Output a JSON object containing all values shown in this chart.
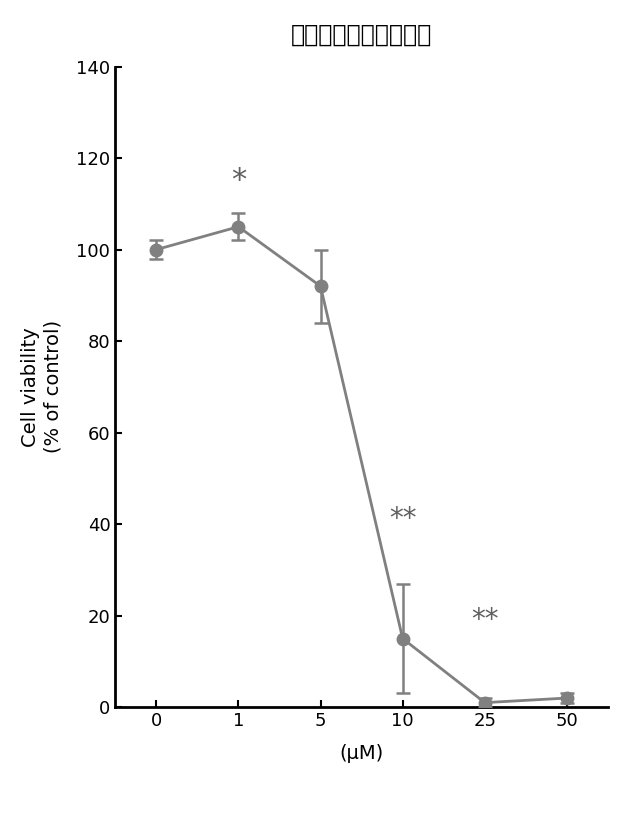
{
  "title": "作用濃度と細胞生存率",
  "x_indices": [
    0,
    1,
    2,
    3,
    4,
    5
  ],
  "x_tick_labels": [
    "0",
    "1",
    "5",
    "10",
    "25",
    "50"
  ],
  "y_values": [
    100,
    105,
    92,
    15,
    1,
    2
  ],
  "y_errors": [
    2,
    3,
    8,
    12,
    1,
    1
  ],
  "xlabel": "(μM)",
  "ylabel": "Cell viability\n(% of control)",
  "ylim": [
    0,
    140
  ],
  "yticks": [
    0,
    20,
    40,
    60,
    80,
    100,
    120,
    140
  ],
  "line_color": "#808080",
  "marker_color": "#808080",
  "marker_size": 9,
  "line_width": 2.0,
  "annotations": [
    {
      "xi": 1,
      "y": 112,
      "text": "*",
      "fontsize": 22
    },
    {
      "xi": 3,
      "y": 38,
      "text": "**",
      "fontsize": 20
    },
    {
      "xi": 4,
      "y": 16,
      "text": "**",
      "fontsize": 20
    }
  ],
  "background_color": "#ffffff",
  "title_fontsize": 17,
  "axis_fontsize": 14,
  "tick_fontsize": 13
}
